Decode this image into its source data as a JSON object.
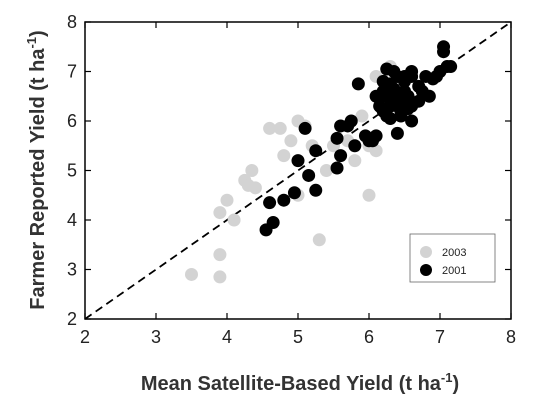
{
  "chart_data": {
    "type": "scatter",
    "xlabel": "Mean Satellite-Based Yield (t ha⁻¹)",
    "ylabel": "Farmer Reported Yield (t ha⁻¹)",
    "xlabel_main": "Mean Satellite-Based Yield (t ha",
    "xlabel_sup": "-1",
    "xlabel_close": ")",
    "ylabel_main": "Farmer Reported Yield (t ha",
    "ylabel_sup": "-1",
    "ylabel_close": ")",
    "xlim": [
      2,
      8
    ],
    "ylim": [
      2,
      8
    ],
    "xticks": [
      2,
      3,
      4,
      5,
      6,
      7,
      8
    ],
    "yticks": [
      2,
      3,
      4,
      5,
      6,
      7,
      8
    ],
    "grid": false,
    "legend_position": "bottom-right",
    "reference_line": {
      "style": "dashed",
      "from": [
        2,
        2
      ],
      "to": [
        8,
        8
      ]
    },
    "series": [
      {
        "name": "2003",
        "color": "#d3d3d3",
        "points": [
          [
            3.5,
            2.9
          ],
          [
            3.9,
            2.85
          ],
          [
            3.9,
            3.3
          ],
          [
            3.9,
            4.15
          ],
          [
            4.0,
            4.4
          ],
          [
            4.1,
            4.0
          ],
          [
            4.25,
            4.8
          ],
          [
            4.3,
            4.7
          ],
          [
            4.35,
            5.0
          ],
          [
            4.4,
            4.65
          ],
          [
            4.6,
            5.85
          ],
          [
            4.75,
            5.85
          ],
          [
            4.8,
            5.3
          ],
          [
            4.9,
            5.6
          ],
          [
            5.0,
            6.0
          ],
          [
            5.1,
            5.9
          ],
          [
            5.0,
            4.5
          ],
          [
            5.2,
            5.5
          ],
          [
            5.3,
            3.6
          ],
          [
            5.4,
            5.0
          ],
          [
            5.5,
            5.5
          ],
          [
            5.6,
            5.9
          ],
          [
            5.7,
            5.6
          ],
          [
            5.8,
            5.2
          ],
          [
            5.9,
            6.1
          ],
          [
            6.0,
            5.5
          ],
          [
            6.0,
            4.5
          ],
          [
            6.1,
            5.4
          ],
          [
            6.1,
            6.9
          ],
          [
            6.3,
            7.1
          ],
          [
            6.5,
            6.6
          ],
          [
            6.4,
            6.9
          ],
          [
            6.2,
            6.2
          ]
        ]
      },
      {
        "name": "2001",
        "color": "#000000",
        "points": [
          [
            4.55,
            3.8
          ],
          [
            4.65,
            3.95
          ],
          [
            4.6,
            4.35
          ],
          [
            4.8,
            4.4
          ],
          [
            4.95,
            4.55
          ],
          [
            5.0,
            5.2
          ],
          [
            5.15,
            4.9
          ],
          [
            5.25,
            4.6
          ],
          [
            5.1,
            5.85
          ],
          [
            5.25,
            5.4
          ],
          [
            5.55,
            5.05
          ],
          [
            5.6,
            5.3
          ],
          [
            5.6,
            5.9
          ],
          [
            5.55,
            5.65
          ],
          [
            5.7,
            5.9
          ],
          [
            5.75,
            6.0
          ],
          [
            5.8,
            5.5
          ],
          [
            5.85,
            6.75
          ],
          [
            5.95,
            5.7
          ],
          [
            6.0,
            5.6
          ],
          [
            6.05,
            5.6
          ],
          [
            6.1,
            6.5
          ],
          [
            6.15,
            6.5
          ],
          [
            6.15,
            6.3
          ],
          [
            6.2,
            6.6
          ],
          [
            6.2,
            6.8
          ],
          [
            6.2,
            6.2
          ],
          [
            6.25,
            6.1
          ],
          [
            6.25,
            6.5
          ],
          [
            6.3,
            6.75
          ],
          [
            6.3,
            6.3
          ],
          [
            6.35,
            6.55
          ],
          [
            6.35,
            7.0
          ],
          [
            6.4,
            6.3
          ],
          [
            6.4,
            6.5
          ],
          [
            6.4,
            6.9
          ],
          [
            6.45,
            6.1
          ],
          [
            6.45,
            6.4
          ],
          [
            6.5,
            6.6
          ],
          [
            6.5,
            6.8
          ],
          [
            6.5,
            6.9
          ],
          [
            6.55,
            6.5
          ],
          [
            6.6,
            6.3
          ],
          [
            6.6,
            6.9
          ],
          [
            6.6,
            7.0
          ],
          [
            6.7,
            6.7
          ],
          [
            6.75,
            6.6
          ],
          [
            6.8,
            6.9
          ],
          [
            6.85,
            6.5
          ],
          [
            6.9,
            6.85
          ],
          [
            6.95,
            6.9
          ],
          [
            7.0,
            7.0
          ],
          [
            7.05,
            7.4
          ],
          [
            7.05,
            7.5
          ],
          [
            7.1,
            7.1
          ],
          [
            7.15,
            7.1
          ],
          [
            6.6,
            6.0
          ],
          [
            6.4,
            5.75
          ],
          [
            6.1,
            5.7
          ],
          [
            6.3,
            6.05
          ],
          [
            6.7,
            6.4
          ],
          [
            6.25,
            7.05
          ],
          [
            6.45,
            6.2
          ],
          [
            6.35,
            6.65
          ],
          [
            6.55,
            6.25
          ]
        ]
      }
    ]
  }
}
